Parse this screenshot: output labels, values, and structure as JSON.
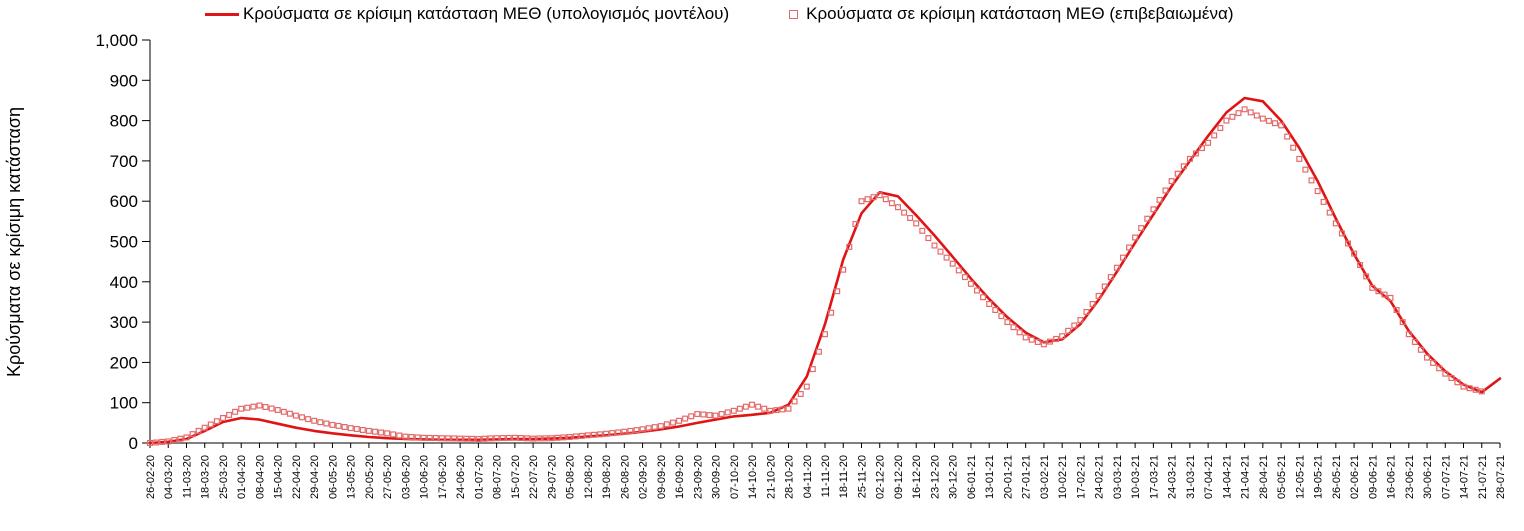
{
  "chart_data": {
    "type": "line",
    "title": "",
    "xlabel": "",
    "ylabel": "Κρούσματα σε κρίσιμη κατάσταση",
    "ylim": [
      0,
      1000
    ],
    "ytick_step": 100,
    "grid": false,
    "legend_position": "top",
    "axis_color": "#000000",
    "categories": [
      "26-02-20",
      "04-03-20",
      "11-03-20",
      "18-03-20",
      "25-03-20",
      "01-04-20",
      "08-04-20",
      "15-04-20",
      "22-04-20",
      "29-04-20",
      "06-05-20",
      "13-05-20",
      "20-05-20",
      "27-05-20",
      "03-06-20",
      "10-06-20",
      "17-06-20",
      "24-06-20",
      "01-07-20",
      "08-07-20",
      "15-07-20",
      "22-07-20",
      "29-07-20",
      "05-08-20",
      "12-08-20",
      "19-08-20",
      "26-08-20",
      "02-09-20",
      "09-09-20",
      "16-09-20",
      "23-09-20",
      "30-09-20",
      "07-10-20",
      "14-10-20",
      "21-10-20",
      "28-10-20",
      "04-11-20",
      "11-11-20",
      "18-11-20",
      "25-11-20",
      "02-12-20",
      "09-12-20",
      "16-12-20",
      "23-12-20",
      "30-12-20",
      "06-01-21",
      "13-01-21",
      "20-01-21",
      "27-01-21",
      "03-02-21",
      "10-02-21",
      "17-02-21",
      "24-02-21",
      "03-03-21",
      "10-03-21",
      "17-03-21",
      "24-03-21",
      "31-03-21",
      "07-04-21",
      "14-04-21",
      "21-04-21",
      "28-04-21",
      "05-05-21",
      "12-05-21",
      "19-05-21",
      "26-05-21",
      "02-06-21",
      "09-06-21",
      "16-06-21",
      "23-06-21",
      "30-06-21",
      "07-07-21",
      "14-07-21",
      "21-07-21",
      "28-07-21"
    ],
    "series": [
      {
        "name": "Κρούσματα σε κρίσιμη κατάσταση ΜΕΘ (υπολογισμός μοντέλου)",
        "type": "line",
        "color": "#e01414",
        "values": [
          0,
          3,
          10,
          30,
          52,
          62,
          58,
          48,
          38,
          30,
          24,
          19,
          15,
          12,
          10,
          9,
          8,
          8,
          8,
          9,
          10,
          10,
          11,
          13,
          16,
          19,
          23,
          28,
          34,
          41,
          50,
          58,
          66,
          70,
          75,
          95,
          165,
          295,
          455,
          570,
          622,
          612,
          565,
          515,
          462,
          408,
          357,
          312,
          274,
          250,
          257,
          295,
          355,
          425,
          497,
          567,
          637,
          700,
          762,
          820,
          856,
          848,
          800,
          732,
          650,
          557,
          468,
          390,
          352,
          278,
          222,
          178,
          145,
          126,
          160
        ]
      },
      {
        "name": "Κρούσματα σε κρίσιμη κατάσταση ΜΕΘ (επιβεβαιωμένα)",
        "type": "scatter-square",
        "color": "#e36a6a",
        "values": [
          0,
          4,
          14,
          38,
          62,
          85,
          93,
          82,
          68,
          55,
          45,
          37,
          30,
          24,
          16,
          13,
          12,
          11,
          10,
          12,
          13,
          11,
          12,
          15,
          19,
          23,
          28,
          34,
          42,
          55,
          72,
          68,
          80,
          95,
          80,
          85,
          140,
          270,
          430,
          600,
          615,
          585,
          545,
          490,
          445,
          395,
          345,
          300,
          262,
          245,
          265,
          305,
          365,
          435,
          510,
          580,
          650,
          705,
          745,
          800,
          828,
          805,
          788,
          705,
          625,
          545,
          470,
          385,
          360,
          270,
          212,
          172,
          140,
          128,
          null
        ]
      }
    ]
  }
}
